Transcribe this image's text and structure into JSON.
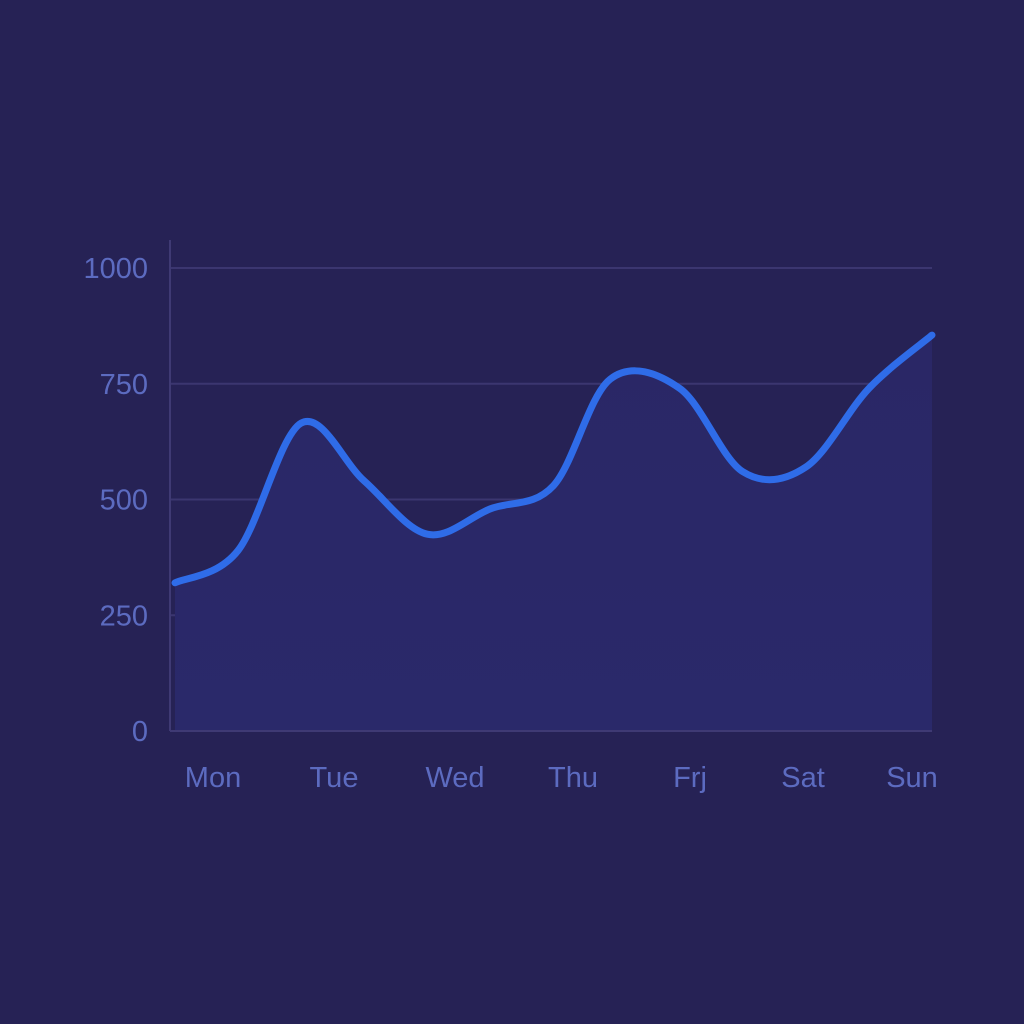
{
  "colors": {
    "background": "#262255",
    "grid": "#3b3670",
    "axis": "#3f3a74",
    "tick_text": "#5c6bc0",
    "line": "#2f6ce8",
    "area_top": "#2a2766",
    "area_bottom": "#2a296a"
  },
  "chart_data": {
    "type": "area",
    "categories": [
      "Mon",
      "Tue",
      "Wed",
      "Thu",
      "Frj",
      "Sat",
      "Sun"
    ],
    "series": [
      {
        "x": [
          0,
          0.5,
          1,
          1.5,
          2,
          2.5,
          3,
          3.45,
          4,
          4.5,
          5,
          5.5,
          6
        ],
        "values": [
          320,
          390,
          665,
          540,
          425,
          480,
          530,
          760,
          740,
          560,
          570,
          740,
          855
        ]
      }
    ],
    "y_ticks": [
      "0",
      "250",
      "500",
      "750",
      "1000"
    ],
    "y_tick_values": [
      0,
      250,
      500,
      750,
      1000
    ],
    "ylim": [
      0,
      1000
    ],
    "grid": true,
    "legend": "none",
    "smooth": true
  }
}
